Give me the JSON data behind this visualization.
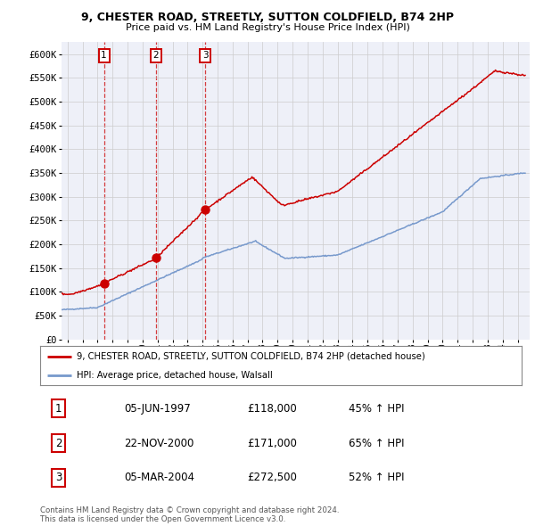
{
  "title1": "9, CHESTER ROAD, STREETLY, SUTTON COLDFIELD, B74 2HP",
  "title2": "Price paid vs. HM Land Registry's House Price Index (HPI)",
  "ylabel_ticks": [
    "£0",
    "£50K",
    "£100K",
    "£150K",
    "£200K",
    "£250K",
    "£300K",
    "£350K",
    "£400K",
    "£450K",
    "£500K",
    "£550K",
    "£600K"
  ],
  "ytick_vals": [
    0,
    50000,
    100000,
    150000,
    200000,
    250000,
    300000,
    350000,
    400000,
    450000,
    500000,
    550000,
    600000
  ],
  "ylim": [
    0,
    625000
  ],
  "xlim_start": 1994.6,
  "xlim_end": 2025.8,
  "sale_dates": [
    1997.43,
    2000.9,
    2004.17
  ],
  "sale_prices": [
    118000,
    171000,
    272500
  ],
  "sale_labels": [
    "1",
    "2",
    "3"
  ],
  "property_color": "#cc0000",
  "hpi_color": "#7799cc",
  "legend_property": "9, CHESTER ROAD, STREETLY, SUTTON COLDFIELD, B74 2HP (detached house)",
  "legend_hpi": "HPI: Average price, detached house, Walsall",
  "table_rows": [
    [
      "1",
      "05-JUN-1997",
      "£118,000",
      "45% ↑ HPI"
    ],
    [
      "2",
      "22-NOV-2000",
      "£171,000",
      "65% ↑ HPI"
    ],
    [
      "3",
      "05-MAR-2004",
      "£272,500",
      "52% ↑ HPI"
    ]
  ],
  "footnote1": "Contains HM Land Registry data © Crown copyright and database right 2024.",
  "footnote2": "This data is licensed under the Open Government Licence v3.0.",
  "bg_color": "#eef0f8",
  "grid_color": "#cccccc",
  "xtick_years": [
    1995,
    1996,
    1997,
    1998,
    1999,
    2000,
    2001,
    2002,
    2003,
    2004,
    2005,
    2006,
    2007,
    2008,
    2009,
    2010,
    2011,
    2012,
    2013,
    2014,
    2015,
    2016,
    2017,
    2018,
    2019,
    2020,
    2021,
    2022,
    2023,
    2024,
    2025
  ]
}
